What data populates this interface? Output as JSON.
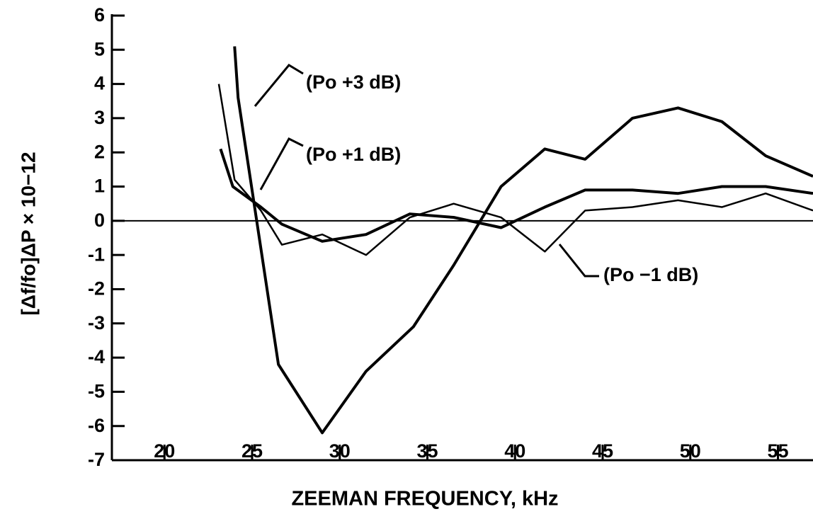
{
  "chart_data": {
    "type": "line",
    "xlabel": "ZEEMAN FREQUENCY, kHz",
    "ylabel": "[Δf/fo]ΔP × 10−12",
    "xlim": [
      17,
      57
    ],
    "ylim": [
      -7,
      6
    ],
    "xticks": [
      20,
      25,
      30,
      35,
      40,
      45,
      50,
      55
    ],
    "yticks": [
      -7,
      -6,
      -5,
      -4,
      -3,
      -2,
      -1,
      0,
      1,
      2,
      3,
      4,
      5,
      6
    ],
    "zero_line": true,
    "series": [
      {
        "name": "(Po +3 dB)",
        "color": "#000000",
        "x": [
          24.0,
          24.2,
          26.5,
          29.0,
          31.5,
          34.2,
          36.5,
          39.2,
          41.7,
          44.0,
          46.7,
          49.3,
          51.8,
          54.3,
          57.0
        ],
        "values": [
          5.1,
          3.6,
          -4.2,
          -6.2,
          -4.4,
          -3.1,
          -1.3,
          1.0,
          2.1,
          1.8,
          3.0,
          3.3,
          2.9,
          1.9,
          1.3
        ]
      },
      {
        "name": "(Po +1 dB)",
        "color": "#000000",
        "x": [
          23.2,
          23.9,
          25.5,
          26.7,
          29.0,
          31.5,
          34.0,
          36.5,
          39.2,
          41.7,
          44.0,
          46.7,
          49.3,
          51.8,
          54.3,
          57.0
        ],
        "values": [
          2.1,
          1.0,
          0.4,
          -0.1,
          -0.6,
          -0.4,
          0.2,
          0.1,
          -0.2,
          0.4,
          0.9,
          0.9,
          0.8,
          1.0,
          1.0,
          0.8
        ]
      },
      {
        "name": "(Po −1 dB)",
        "color": "#000000",
        "x": [
          23.1,
          24.0,
          25.5,
          26.7,
          29.0,
          31.5,
          34.0,
          36.5,
          39.2,
          41.7,
          44.0,
          46.7,
          49.3,
          51.8,
          54.3,
          57.0
        ],
        "values": [
          4.0,
          1.2,
          0.3,
          -0.7,
          -0.4,
          -1.0,
          0.1,
          0.5,
          0.1,
          -0.9,
          0.3,
          0.4,
          0.6,
          0.4,
          0.8,
          0.3
        ]
      }
    ]
  }
}
